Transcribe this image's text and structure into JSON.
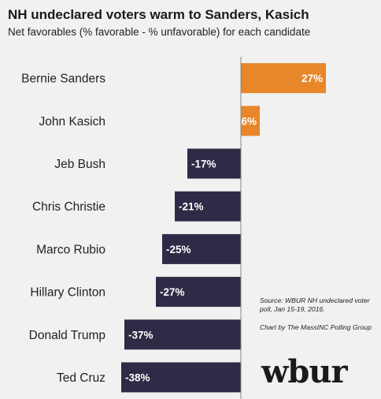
{
  "title": "NH undeclared voters warm to Sanders, Kasich",
  "subtitle": "Net favorables (% favorable - % unfavorable) for each candidate",
  "source_note": "Source: WBUR NH undeclared voter poll, Jan 15-19, 2016.",
  "credit_note": "Chart by The MassINC Polling Group",
  "logo_text": "wbur",
  "colors": {
    "positive": "#e8862a",
    "negative": "#2f2a45",
    "background": "#f1f1f1",
    "axis": "#888888"
  },
  "chart_data": {
    "type": "bar",
    "orientation": "horizontal",
    "categories": [
      "Bernie Sanders",
      "John Kasich",
      "Jeb Bush",
      "Chris Christie",
      "Marco Rubio",
      "Hillary Clinton",
      "Donald Trump",
      "Ted Cruz"
    ],
    "values": [
      27,
      6,
      -17,
      -21,
      -25,
      -27,
      -37,
      -38
    ],
    "data_labels": [
      "27%",
      "6%",
      "-17%",
      "-21%",
      "-25%",
      "-27%",
      "-37%",
      "-38%"
    ],
    "xlim": [
      -38,
      27
    ],
    "grid": false,
    "legend": "none"
  }
}
